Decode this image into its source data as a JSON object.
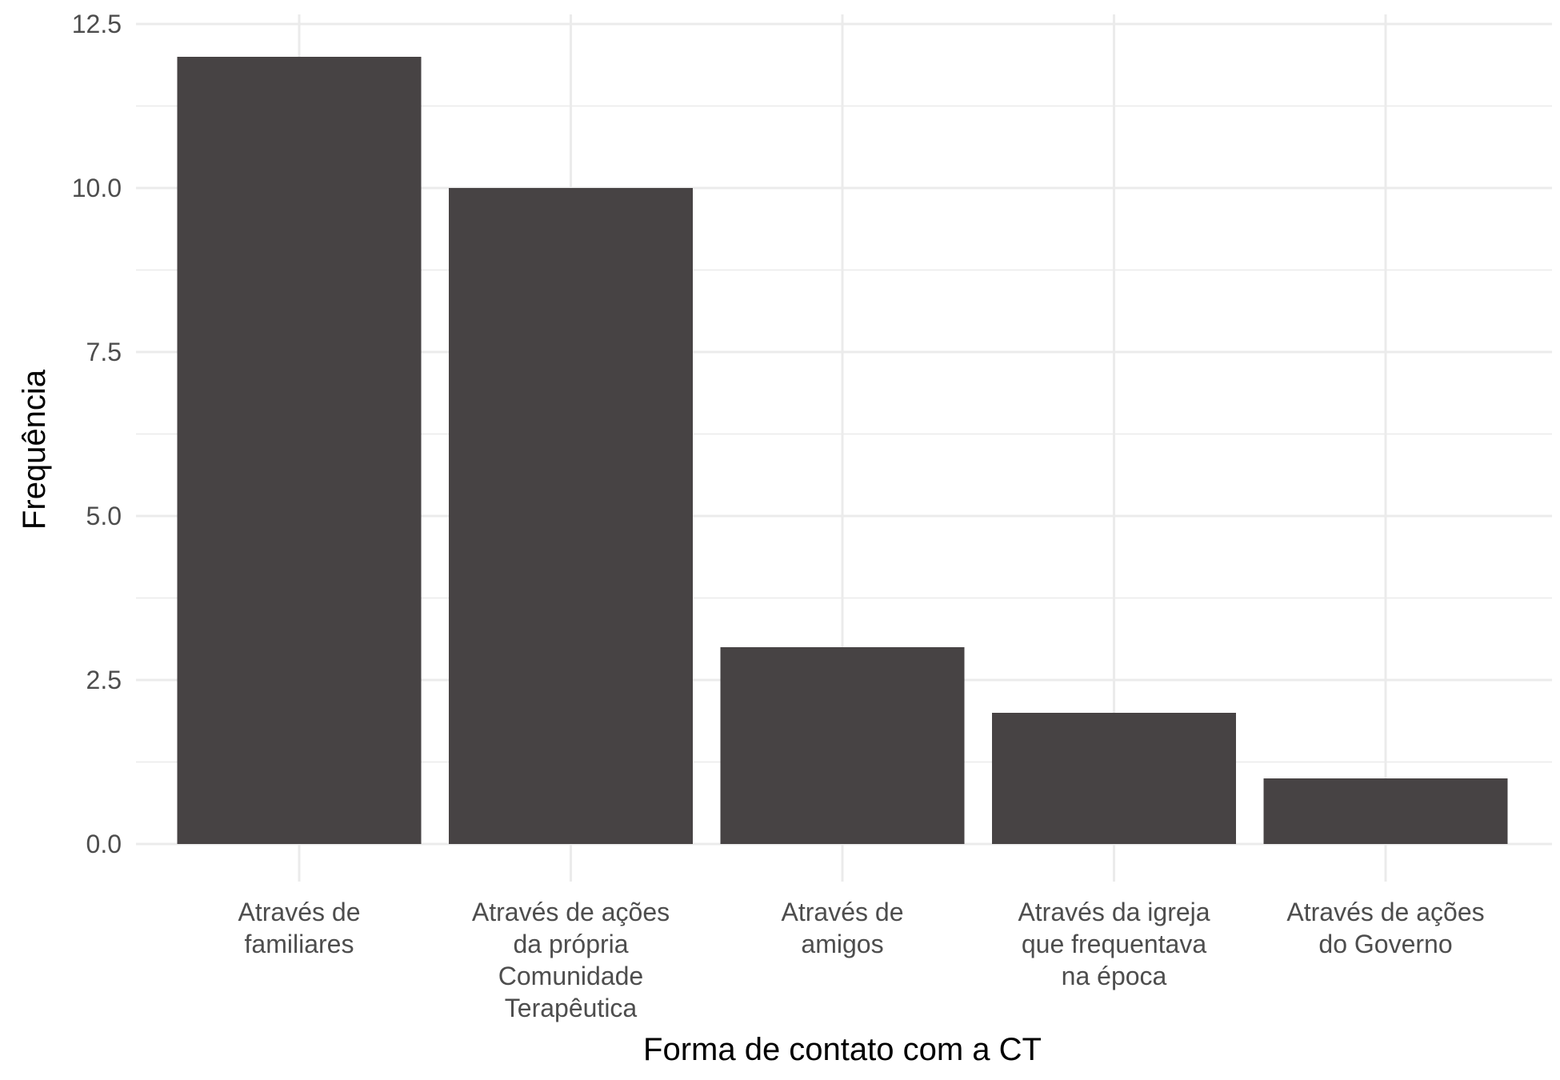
{
  "chart_data": {
    "type": "bar",
    "title": "",
    "xlabel": "Forma de contato com a CT",
    "ylabel": "Frequência",
    "ylim": [
      0,
      12.5
    ],
    "yticks": [
      0,
      2.5,
      5,
      7.5,
      10,
      12.5
    ],
    "ytick_labels": [
      "0.0",
      "2.5",
      "5.0",
      "7.5",
      "10.0",
      "12.5"
    ],
    "categories": [
      [
        "Através de",
        "familiares"
      ],
      [
        "Através de ações",
        "da própria",
        "Comunidade",
        "Terapêutica"
      ],
      [
        "Através de",
        "amigos"
      ],
      [
        "Através da igreja",
        "que frequentava",
        "na época"
      ],
      [
        "Através de ações",
        "do Governo"
      ]
    ],
    "values": [
      12,
      10,
      3,
      2,
      1
    ],
    "grid": true,
    "colors": {
      "bar": "#474344",
      "grid": "#ebebeb",
      "tick_text": "#4d4d4d",
      "title_text": "#000000"
    }
  }
}
